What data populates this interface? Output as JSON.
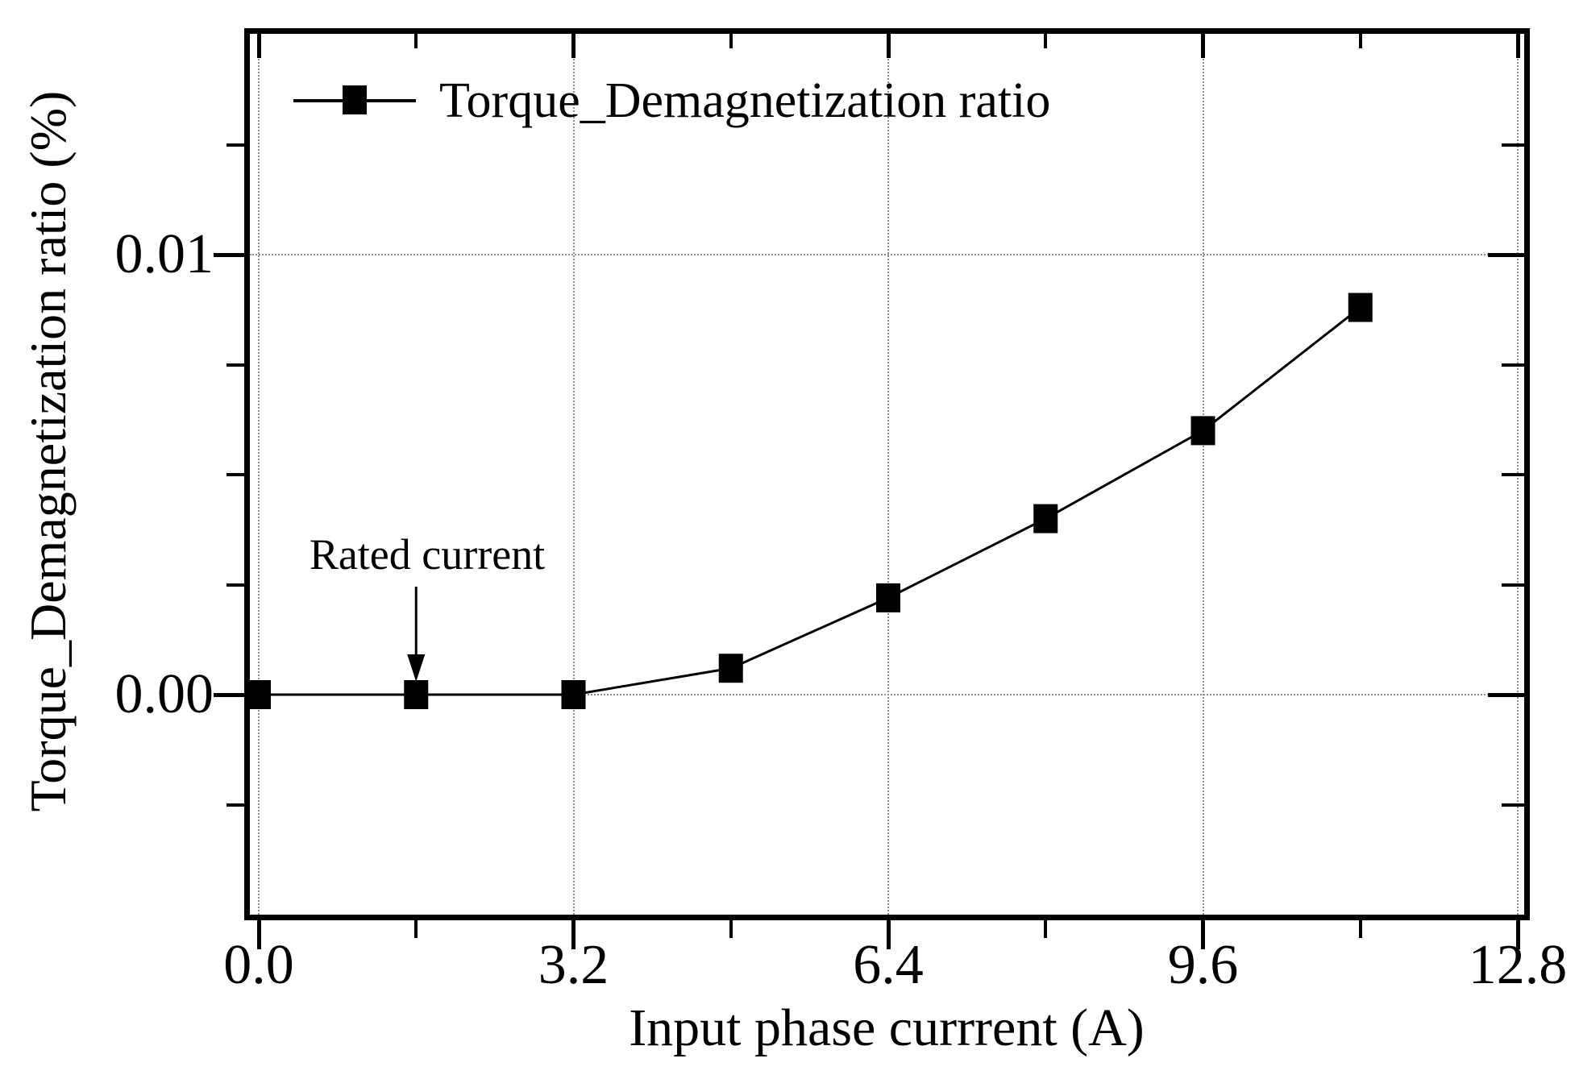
{
  "chart_data": {
    "type": "line",
    "title": "",
    "xlabel": "Input phase currrent (A)",
    "ylabel": "Torque_Demagnetization ratio (%)",
    "xlim": [
      0,
      12.8
    ],
    "ylim": [
      -0.005,
      0.015
    ],
    "x": [
      0,
      1.6,
      3.2,
      4.8,
      6.4,
      8.0,
      9.6,
      11.2
    ],
    "series": [
      {
        "name": "Torque_Demagnetization ratio",
        "values": [
          0.0,
          0.0,
          0.0,
          0.0006,
          0.0022,
          0.004,
          0.006,
          0.0088
        ]
      }
    ],
    "x_major_ticks": [
      {
        "value": 0,
        "label": "0.0"
      },
      {
        "value": 3.2,
        "label": "3.2"
      },
      {
        "value": 6.4,
        "label": "6.4"
      },
      {
        "value": 9.6,
        "label": "9.6"
      },
      {
        "value": 12.8,
        "label": "12.8"
      }
    ],
    "x_minor_ticks": [
      1.6,
      4.8,
      8.0,
      11.2
    ],
    "y_major_ticks": [
      {
        "value": 0,
        "label": "0.00"
      },
      {
        "value": 0.01,
        "label": "0.01"
      }
    ],
    "y_minor_ticks": [
      -0.0025,
      0.0025,
      0.005,
      0.0075,
      0.0125
    ],
    "grid": {
      "x_lines": [
        0,
        3.2,
        6.4,
        9.6,
        12.8
      ],
      "y_lines": [
        0,
        0.01
      ],
      "style": "dotted",
      "color": "#8f8f8f"
    },
    "legend": {
      "position": "top-left",
      "frame": false,
      "entries": [
        {
          "label": "Torque_Demagnetization ratio",
          "marker": "filled-square",
          "line": "solid"
        }
      ]
    },
    "annotations": [
      {
        "text": "Rated current",
        "arrow": "down",
        "x": 1.6,
        "points_to_y": 0
      }
    ],
    "marker": {
      "shape": "square",
      "color": "#000000"
    },
    "line_color": "#000000",
    "grid_on": true,
    "axis_color": "#000000",
    "text_color": "#000000",
    "background_color": "#ffffff"
  }
}
